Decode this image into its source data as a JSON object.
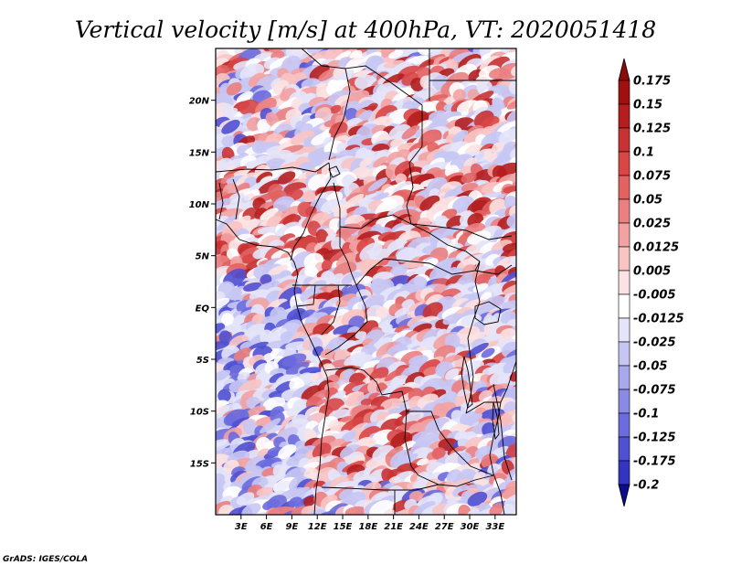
{
  "chart_data": {
    "type": "heatmap",
    "title": "Vertical velocity [m/s] at 400hPa, VT: 2020051418",
    "variable": "Vertical velocity",
    "units": "m/s",
    "level": "400hPa",
    "valid_time": "2020051418",
    "x_axis": {
      "range_deg": [
        0,
        35.5
      ],
      "ticks": [
        {
          "value": 3,
          "label": "3E"
        },
        {
          "value": 6,
          "label": "6E"
        },
        {
          "value": 9,
          "label": "9E"
        },
        {
          "value": 12,
          "label": "12E"
        },
        {
          "value": 15,
          "label": "15E"
        },
        {
          "value": 18,
          "label": "18E"
        },
        {
          "value": 21,
          "label": "21E"
        },
        {
          "value": 24,
          "label": "24E"
        },
        {
          "value": 27,
          "label": "27E"
        },
        {
          "value": 30,
          "label": "30E"
        },
        {
          "value": 33,
          "label": "33E"
        }
      ]
    },
    "y_axis": {
      "range_deg": [
        -20,
        25
      ],
      "ticks": [
        {
          "value": 20,
          "label": "20N"
        },
        {
          "value": 15,
          "label": "15N"
        },
        {
          "value": 10,
          "label": "10N"
        },
        {
          "value": 5,
          "label": "5N"
        },
        {
          "value": 0,
          "label": "EQ"
        },
        {
          "value": -5,
          "label": "5S"
        },
        {
          "value": -10,
          "label": "10S"
        },
        {
          "value": -15,
          "label": "15S"
        }
      ]
    },
    "colorbar": {
      "levels": [
        {
          "label": "0.175",
          "color": "#a01010"
        },
        {
          "label": "0.15",
          "color": "#b41e1e"
        },
        {
          "label": "0.125",
          "color": "#c83232"
        },
        {
          "label": "0.1",
          "color": "#d84646"
        },
        {
          "label": "0.075",
          "color": "#e26262"
        },
        {
          "label": "0.05",
          "color": "#ea8080"
        },
        {
          "label": "0.025",
          "color": "#f2a2a2"
        },
        {
          "label": "0.0125",
          "color": "#f8c4c4"
        },
        {
          "label": "0.005",
          "color": "#fce2e2"
        },
        {
          "label": "-0.005",
          "color": "#ffffff"
        },
        {
          "label": "-0.0125",
          "color": "#e4e4fa"
        },
        {
          "label": "-0.025",
          "color": "#c6c6f4"
        },
        {
          "label": "-0.05",
          "color": "#a8a8ee"
        },
        {
          "label": "-0.075",
          "color": "#8a8ae6"
        },
        {
          "label": "-0.1",
          "color": "#6c6cde"
        },
        {
          "label": "-0.125",
          "color": "#5050d2"
        },
        {
          "label": "-0.175",
          "color": "#3434c2"
        },
        {
          "label": "-0.2",
          "color": "#1a1aaa"
        }
      ],
      "top_arrow_color": "#8c0a0a",
      "bottom_arrow_color": "#0c0c8c"
    },
    "grid": false,
    "legend_position": "right"
  },
  "footer": {
    "credit": "GrADS: IGES/COLA"
  }
}
